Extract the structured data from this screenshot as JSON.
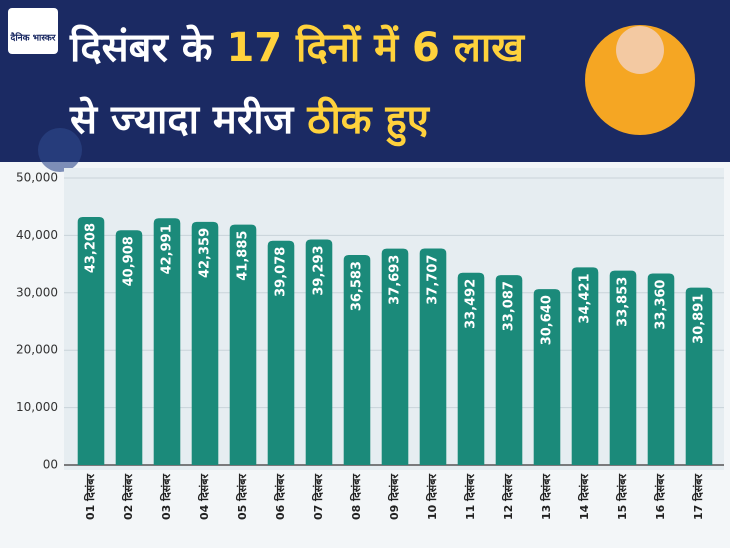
{
  "logo": "दैनिक भास्कर",
  "title": [
    "दिसंबर के",
    "17 दिनों में 6 लाख",
    "से ज्यादा मरीज",
    "ठीक हुए"
  ],
  "chart_data": {
    "type": "bar",
    "categories": [
      "01 दिसंबर",
      "02 दिसंबर",
      "03 दिसंबर",
      "04 दिसंबर",
      "05 दिसंबर",
      "06 दिसंबर",
      "07 दिसंबर",
      "08 दिसंबर",
      "09 दिसंबर",
      "10 दिसंबर",
      "11 दिसंबर",
      "12 दिसंबर",
      "13 दिसंबर",
      "14 दिसंबर",
      "15 दिसंबर",
      "16 दिसंबर",
      "17 दिसंबर"
    ],
    "values": [
      43208,
      40908,
      42991,
      42359,
      41885,
      39078,
      39293,
      36583,
      37693,
      37707,
      33492,
      33087,
      30640,
      34421,
      33853,
      33360,
      30891
    ],
    "value_labels": [
      "43,208",
      "40,908",
      "42,991",
      "42,359",
      "41,885",
      "39,078",
      "39,293",
      "36,583",
      "37,693",
      "37,707",
      "33,492",
      "33,087",
      "30,640",
      "34,421",
      "33,853",
      "33,360",
      "30,891"
    ],
    "color": "#1b8a7a",
    "ylim": [
      0,
      50000
    ],
    "yticks": [
      {
        "value": 0,
        "label": "00"
      },
      {
        "value": 10000,
        "label": "10,000"
      },
      {
        "value": 20000,
        "label": "20,000"
      },
      {
        "value": 30000,
        "label": "30,000"
      },
      {
        "value": 40000,
        "label": "40,000"
      },
      {
        "value": 50000,
        "label": "50,000"
      }
    ],
    "grid": true
  }
}
